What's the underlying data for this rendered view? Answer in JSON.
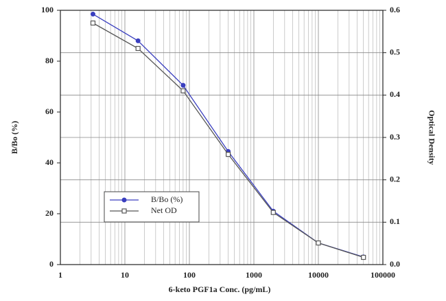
{
  "chart_data": {
    "type": "line",
    "x_label": "6-keto PGF1a Conc. (pg/mL)",
    "y_label": "B/Bo (%)",
    "y2_label": "Optical Density",
    "x": [
      3.2,
      16,
      80,
      400,
      2000,
      10000,
      50000
    ],
    "series": [
      {
        "name": "B/Bo (%)",
        "color": "#3a3fbf",
        "marker": "filled-circle",
        "values": [
          98.5,
          88,
          70.5,
          44.5,
          21,
          8.5,
          3
        ]
      },
      {
        "name": "Net OD",
        "color": "#555555",
        "marker": "open-square",
        "axis": "y2",
        "values": [
          0.57,
          0.51,
          0.41,
          0.26,
          0.123,
          0.051,
          0.017
        ]
      }
    ],
    "x_log": true,
    "xlim": [
      1,
      100000
    ],
    "xticks": [
      1,
      10,
      100,
      1000,
      10000,
      100000
    ],
    "ylim": [
      0,
      100
    ],
    "yticks": [
      0,
      20,
      40,
      60,
      80,
      100
    ],
    "y2lim": [
      0,
      0.6
    ],
    "y2ticks": [
      {
        "value": 0,
        "label": "0.0"
      },
      0.1,
      0.2,
      0.3,
      0.4,
      0.5,
      0.6
    ],
    "grid": true,
    "minor_grid": true,
    "legend": "lower left"
  }
}
